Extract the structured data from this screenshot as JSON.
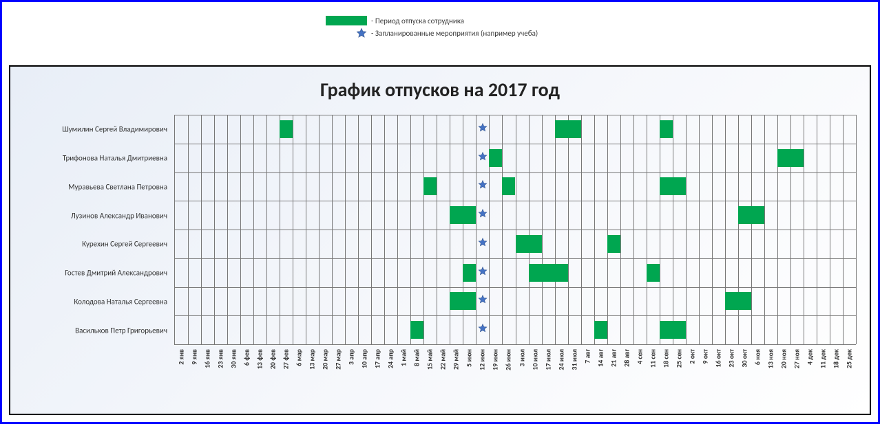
{
  "legend": {
    "vacation_label": "- Период отпуска сотрудника",
    "event_label": "- Запланированные мероприятия (например учеба)",
    "vacation_color": "#00a650",
    "star_fill": "#4472c4",
    "star_stroke": "#2f528f"
  },
  "chart": {
    "title": "График отпусков на 2017 год",
    "background_gradient": [
      "#e8eef7",
      "#ffffff"
    ],
    "grid_color": "#777777",
    "label_fontsize": 11,
    "title_fontsize": 28,
    "num_columns": 52,
    "employees": [
      "Шумилин Сергей Владимирович",
      "Трифонова Наталья Дмитриевна",
      "Муравьева Светлана Петровна",
      "Лузинов Александр Иванович",
      "Курехин Сергей Сергеевич",
      "Гостев Дмитрий Александрович",
      "Колодова Наталья Сергеевна",
      "Васильков Петр Григорьевич"
    ],
    "bars": [
      {
        "row": 0,
        "start": 8,
        "span": 1
      },
      {
        "row": 0,
        "start": 29,
        "span": 2
      },
      {
        "row": 0,
        "start": 37,
        "span": 1
      },
      {
        "row": 1,
        "start": 24,
        "span": 1
      },
      {
        "row": 1,
        "start": 46,
        "span": 2
      },
      {
        "row": 2,
        "start": 19,
        "span": 1
      },
      {
        "row": 2,
        "start": 25,
        "span": 1
      },
      {
        "row": 2,
        "start": 37,
        "span": 2
      },
      {
        "row": 3,
        "start": 21,
        "span": 2
      },
      {
        "row": 3,
        "start": 43,
        "span": 2
      },
      {
        "row": 4,
        "start": 26,
        "span": 2
      },
      {
        "row": 4,
        "start": 33,
        "span": 1
      },
      {
        "row": 5,
        "start": 22,
        "span": 1
      },
      {
        "row": 5,
        "start": 27,
        "span": 3
      },
      {
        "row": 5,
        "start": 36,
        "span": 1
      },
      {
        "row": 6,
        "start": 21,
        "span": 2
      },
      {
        "row": 6,
        "start": 42,
        "span": 2
      },
      {
        "row": 7,
        "start": 18,
        "span": 1
      },
      {
        "row": 7,
        "start": 32,
        "span": 1
      },
      {
        "row": 7,
        "start": 37,
        "span": 2
      }
    ],
    "stars": [
      {
        "row": 0,
        "col": 23
      },
      {
        "row": 1,
        "col": 23
      },
      {
        "row": 2,
        "col": 23
      },
      {
        "row": 3,
        "col": 23
      },
      {
        "row": 4,
        "col": 23
      },
      {
        "row": 5,
        "col": 23
      },
      {
        "row": 6,
        "col": 23
      },
      {
        "row": 7,
        "col": 23
      }
    ],
    "x_labels": [
      "2 янв",
      "9 янв",
      "16 янв",
      "23 янв",
      "30 янв",
      "6 фев",
      "13 фев",
      "20 фев",
      "27 фев",
      "6 мар",
      "13 мар",
      "20 мар",
      "27 мар",
      "3 апр",
      "10 апр",
      "17 апр",
      "24 апр",
      "1 май",
      "8 май",
      "15 май",
      "22 май",
      "29 май",
      "5 июн",
      "12 июн",
      "19 июн",
      "26 июн",
      "3 июл",
      "10 июл",
      "17 июл",
      "24 июл",
      "31 июл",
      "7 авг",
      "14 авг",
      "21 авг",
      "28 авг",
      "4 сен",
      "11 сен",
      "18 сен",
      "25 сен",
      "2 окт",
      "9 окт",
      "16 окт",
      "23 окт",
      "30 окт",
      "6 ноя",
      "13 ноя",
      "20 ноя",
      "27 ноя",
      "4 дек",
      "11 дек",
      "18 дек",
      "25 дек"
    ]
  }
}
